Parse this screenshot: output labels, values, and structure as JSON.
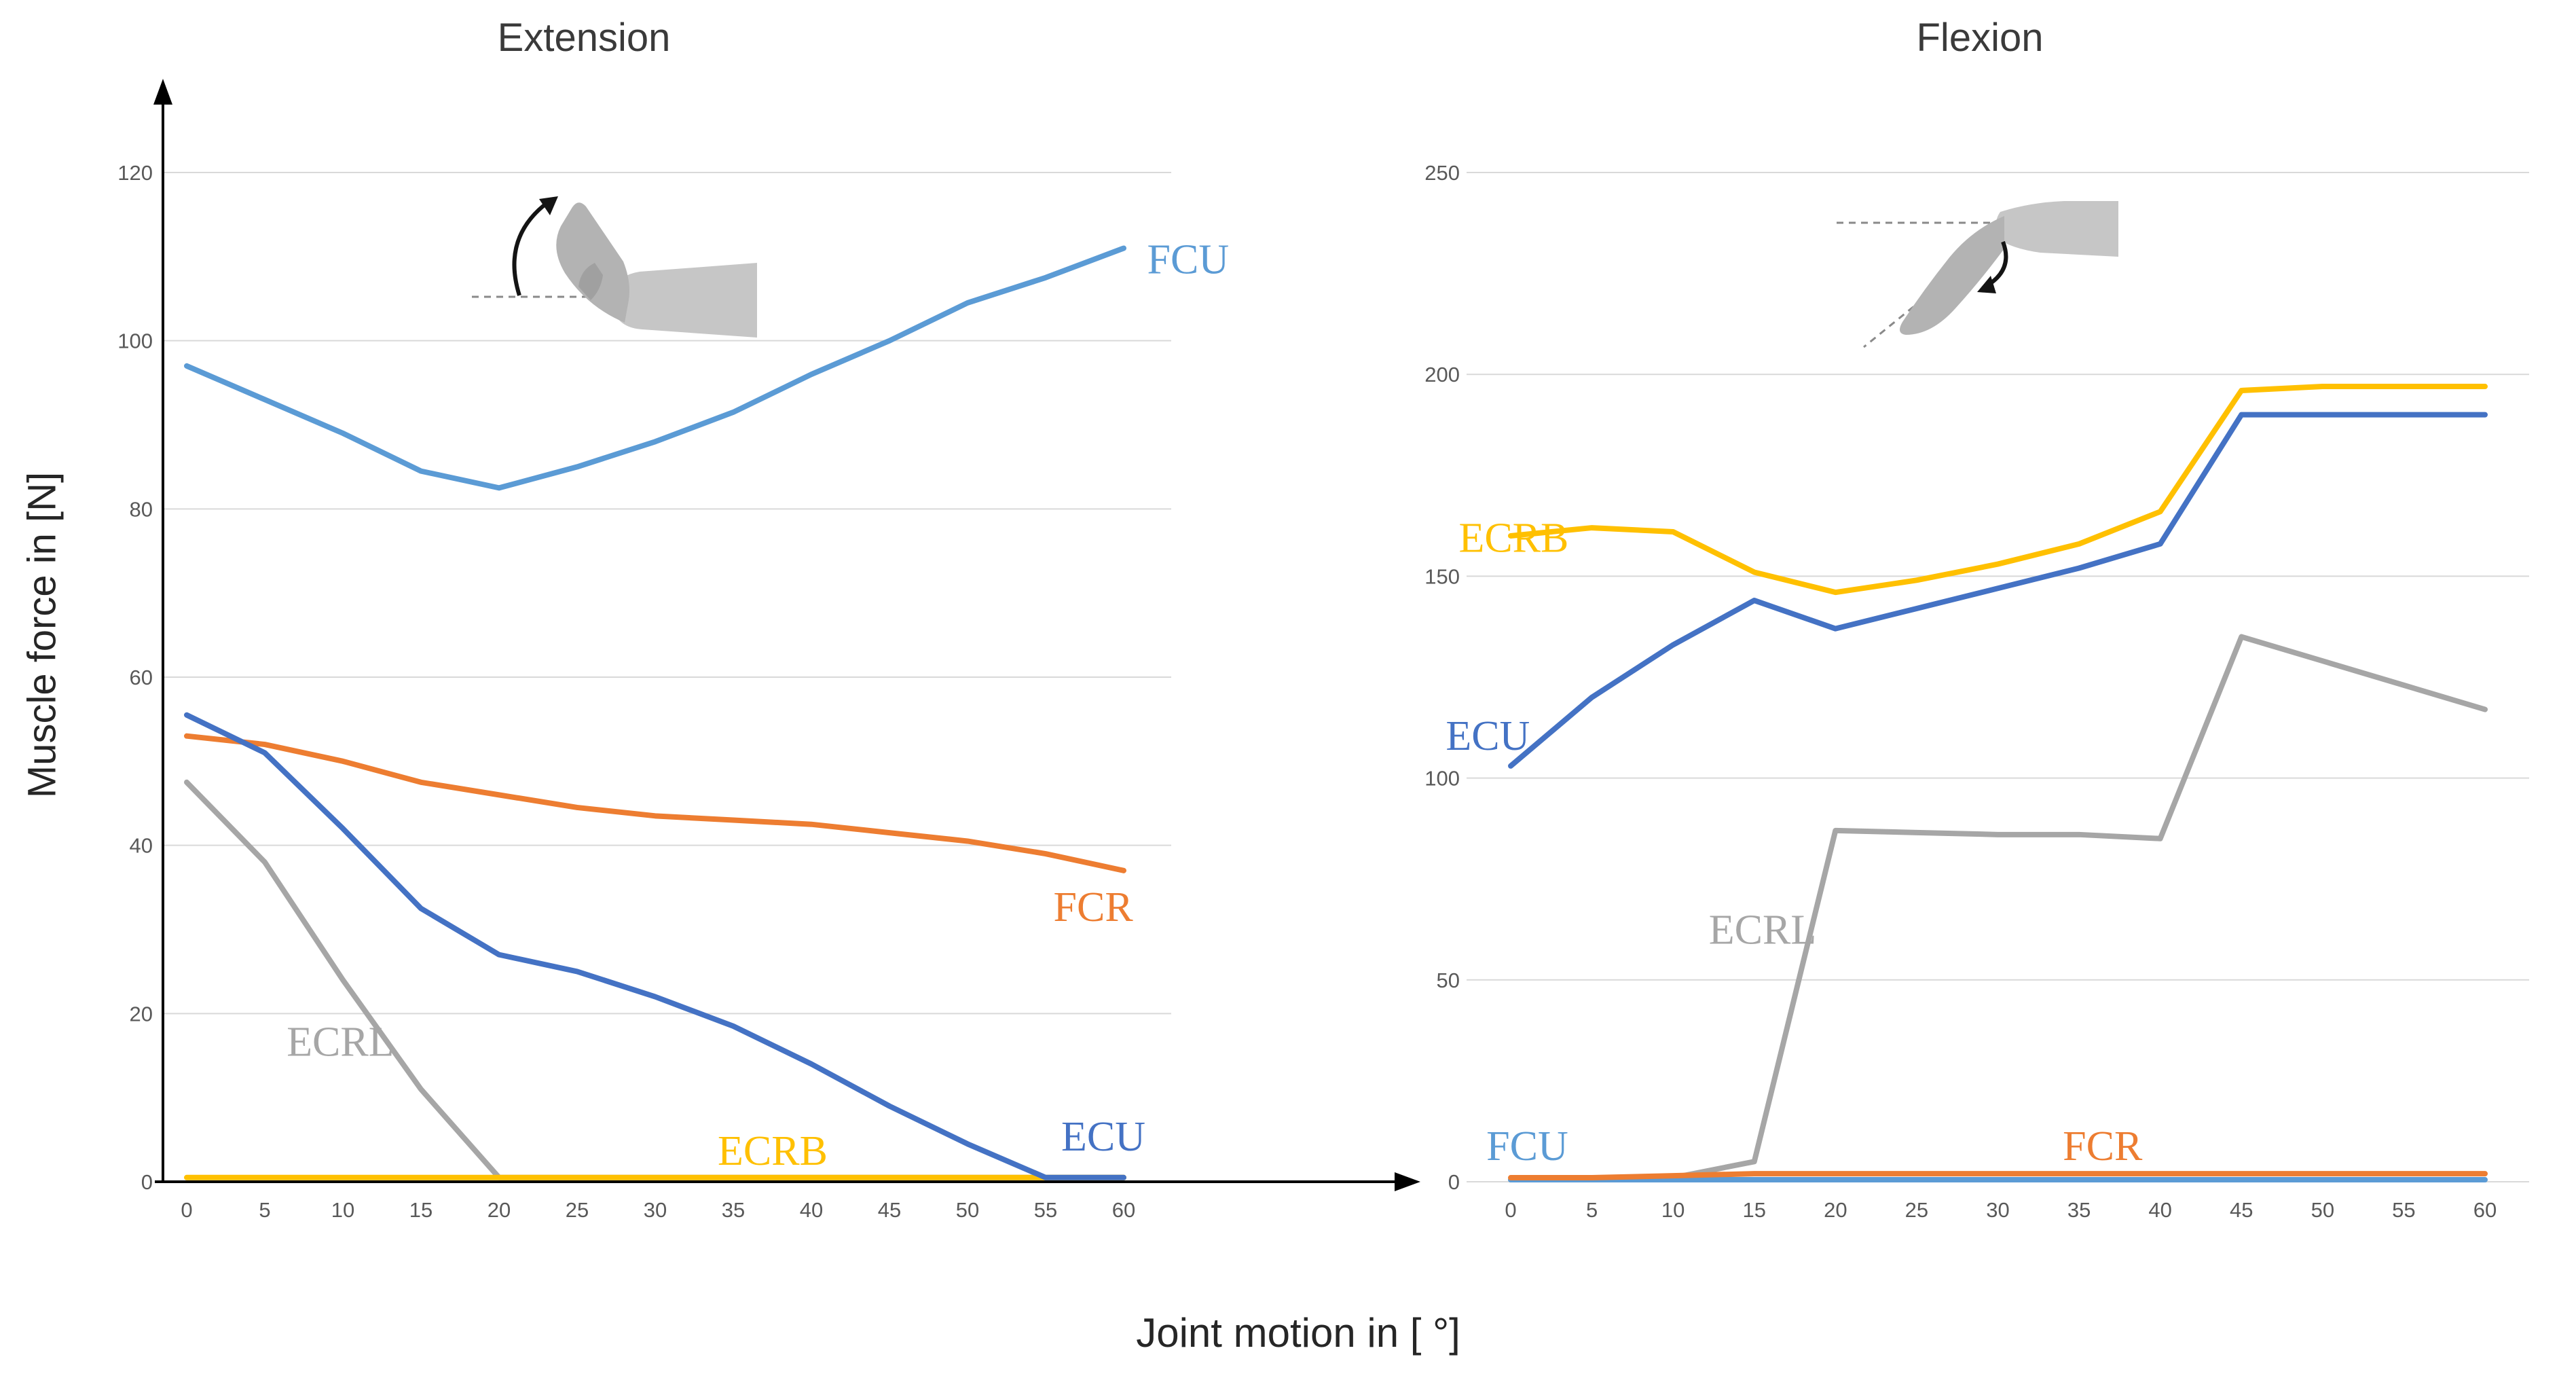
{
  "figure": {
    "xlabel": "Joint motion in [ °]",
    "ylabel": "Muscle force in [N]"
  },
  "chart_data": [
    {
      "type": "line",
      "title": "Extension",
      "x": [
        0,
        5,
        10,
        15,
        20,
        25,
        30,
        35,
        40,
        45,
        50,
        55,
        60
      ],
      "xlim": [
        0,
        60
      ],
      "ylim": [
        0,
        120
      ],
      "yticks": [
        0,
        20,
        40,
        60,
        80,
        100,
        120
      ],
      "grid": true,
      "legend": "inline-labels",
      "series": [
        {
          "name": "ECRL",
          "color": "#A6A6A6",
          "values": [
            47.5,
            38,
            24,
            11,
            0.5,
            0.5,
            0.5,
            0.5,
            0.5,
            0.5,
            0.5,
            0.5,
            0.5
          ],
          "label_pos": {
            "x": 6.4,
            "y": 15,
            "anchor": "start"
          }
        },
        {
          "name": "ECRB",
          "color": "#FFC000",
          "values": [
            0.5,
            0.5,
            0.5,
            0.5,
            0.5,
            0.5,
            0.5,
            0.5,
            0.5,
            0.5,
            0.5,
            0.5,
            0.5
          ],
          "label_pos": {
            "x": 34,
            "y": 2,
            "anchor": "start"
          }
        },
        {
          "name": "FCR",
          "color": "#ED7D31",
          "values": [
            53,
            52,
            50,
            47.5,
            46,
            44.5,
            43.5,
            43,
            42.5,
            41.5,
            40.5,
            39,
            37
          ],
          "label_pos": {
            "x": 55.5,
            "y": 31,
            "anchor": "start"
          }
        },
        {
          "name": "ECU",
          "color": "#4472C4",
          "values": [
            55.5,
            51,
            42,
            32.5,
            27,
            25,
            22,
            18.5,
            14,
            9,
            4.5,
            0.5,
            0.5
          ],
          "label_pos": {
            "x": 56,
            "y": 3.7,
            "anchor": "start"
          }
        },
        {
          "name": "FCU",
          "color": "#5B9BD5",
          "values": [
            97,
            93,
            89,
            84.5,
            82.5,
            85,
            88,
            91.5,
            96,
            100,
            104.5,
            107.5,
            111
          ],
          "label_pos": {
            "x": 61.5,
            "y": 108,
            "anchor": "start"
          }
        }
      ]
    },
    {
      "type": "line",
      "title": "Flexion",
      "x": [
        0,
        5,
        10,
        15,
        20,
        25,
        30,
        35,
        40,
        45,
        50,
        55,
        60
      ],
      "xlim": [
        0,
        60
      ],
      "ylim": [
        0,
        250
      ],
      "yticks": [
        0,
        50,
        100,
        150,
        200,
        250
      ],
      "grid": true,
      "legend": "inline-labels",
      "series": [
        {
          "name": "ECRL",
          "color": "#A6A6A6",
          "values": [
            0.5,
            0.5,
            1,
            5,
            87,
            86.5,
            86,
            86,
            85,
            135,
            129,
            123,
            117
          ],
          "label_pos": {
            "x": 12.2,
            "y": 59,
            "anchor": "start"
          }
        },
        {
          "name": "FCU",
          "color": "#5B9BD5",
          "values": [
            0.5,
            0.5,
            0.5,
            0.5,
            0.5,
            0.5,
            0.5,
            0.5,
            0.5,
            0.5,
            0.5,
            0.5,
            0.5
          ],
          "label_pos": {
            "x": -1.5,
            "y": 5.4,
            "anchor": "start"
          }
        },
        {
          "name": "FCR",
          "color": "#ED7D31",
          "values": [
            1,
            1,
            1.5,
            2,
            2,
            2,
            2,
            2,
            2,
            2,
            2,
            2,
            2
          ],
          "label_pos": {
            "x": 34,
            "y": 5.4,
            "anchor": "start"
          }
        },
        {
          "name": "ECU",
          "color": "#4472C4",
          "values": [
            103,
            120,
            133,
            144,
            137,
            142,
            147,
            152,
            158,
            190,
            190,
            190,
            190
          ],
          "label_pos": {
            "x": -4,
            "y": 107,
            "anchor": "start"
          }
        },
        {
          "name": "ECRB",
          "color": "#FFC000",
          "values": [
            160,
            162,
            161,
            151,
            146,
            149,
            153,
            158,
            166,
            196,
            197,
            197,
            197
          ],
          "label_pos": {
            "x": -3.2,
            "y": 156,
            "anchor": "start"
          }
        }
      ]
    }
  ]
}
